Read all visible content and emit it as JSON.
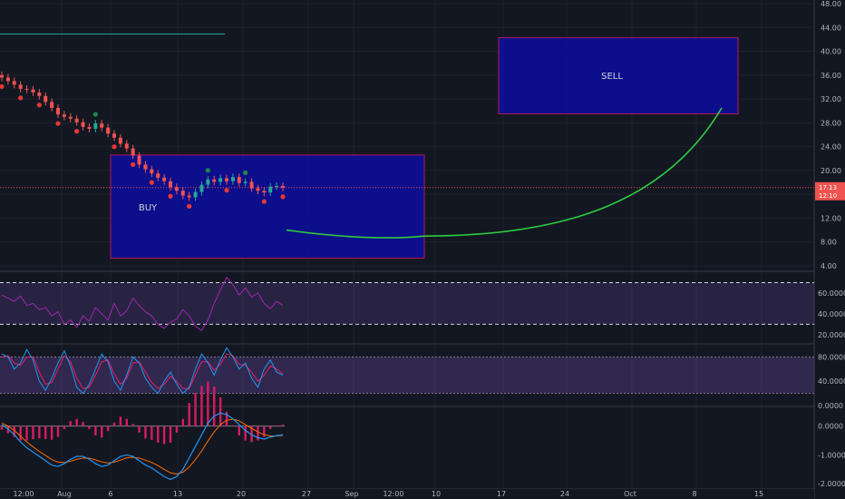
{
  "chart_data": {
    "type": "line",
    "price_axis": {
      "ticks": [
        "48.00",
        "44.00",
        "40.00",
        "36.00",
        "32.00",
        "28.00",
        "24.00",
        "20.00",
        "16.00",
        "12.00",
        "8.00",
        "4.00"
      ],
      "tick_values": [
        48,
        44,
        40,
        36,
        32,
        28,
        24,
        20,
        16,
        12,
        8,
        4
      ],
      "range": [
        4,
        48
      ]
    },
    "time_axis": {
      "labels": [
        "12:00",
        "Aug",
        "6",
        "13",
        "20",
        "27",
        "Sep",
        "12:00",
        "10",
        "17",
        "24",
        "Oct",
        "8",
        "15"
      ]
    },
    "last_price": {
      "value": 17.13,
      "label": "17.13",
      "countdown": "12:10",
      "color": "#ef5350"
    },
    "zones": [
      {
        "label": "BUY",
        "price_low": 5.3,
        "price_high": 22.6,
        "color": "#0d0d9e",
        "border": "#b0185c"
      },
      {
        "label": "SELL",
        "price_low": 29.5,
        "price_high": 42.3,
        "color": "#0d0d9e",
        "border": "#b0185c"
      }
    ],
    "projection_curve": {
      "color": "#2ecc40",
      "from_price": 10.0,
      "bottom_price": 9.0,
      "to_price": 30.5
    },
    "resistance_line": {
      "price": 42.9,
      "color": "#26a69a"
    },
    "price_series": {
      "name": "",
      "values": [
        35.6,
        35.0,
        34.4,
        33.7,
        33.6,
        33.1,
        32.5,
        31.5,
        30.5,
        29.4,
        29.0,
        28.7,
        28.1,
        27.3,
        27.0,
        27.9,
        27.2,
        26.2,
        25.5,
        24.5,
        23.7,
        22.5,
        21.0,
        20.2,
        19.5,
        18.8,
        18.2,
        17.2,
        16.6,
        15.8,
        15.5,
        16.4,
        17.6,
        18.5,
        18.1,
        18.7,
        18.2,
        18.9,
        17.9,
        18.1,
        17.0,
        16.6,
        16.3,
        17.3,
        17.4,
        17.1
      ],
      "up_color": "#26a69a",
      "down_color": "#ef5350"
    },
    "rsi": {
      "ticks": [
        "60.0000",
        "40.0000",
        "20.0000"
      ],
      "tick_values": [
        60,
        40,
        20
      ],
      "range": [
        12,
        80
      ],
      "band": [
        30,
        70
      ],
      "color": "#9c27b0",
      "values": [
        58,
        55,
        52,
        57,
        48,
        50,
        44,
        46,
        38,
        42,
        30,
        34,
        27,
        38,
        33,
        46,
        40,
        34,
        50,
        38,
        43,
        55,
        48,
        42,
        38,
        30,
        26,
        32,
        35,
        44,
        38,
        28,
        24,
        34,
        50,
        63,
        75,
        68,
        58,
        65,
        56,
        60,
        50,
        45,
        52,
        48
      ]
    },
    "stoch": {
      "ticks": [
        "80.0000",
        "40.0000",
        "0.0000"
      ],
      "tick_values": [
        80,
        40,
        0
      ],
      "range": [
        0,
        100
      ],
      "band": [
        20,
        80
      ],
      "k_color": "#2196f3",
      "d_color": "#e91e63",
      "k_values": [
        85,
        80,
        60,
        70,
        92,
        75,
        40,
        25,
        45,
        70,
        90,
        65,
        30,
        20,
        35,
        60,
        85,
        72,
        40,
        25,
        50,
        80,
        70,
        45,
        30,
        20,
        40,
        55,
        35,
        20,
        30,
        60,
        85,
        70,
        50,
        75,
        95,
        80,
        60,
        70,
        45,
        30,
        60,
        75,
        55,
        50
      ],
      "d_values": [
        80,
        82,
        70,
        66,
        80,
        80,
        55,
        35,
        38,
        60,
        82,
        72,
        45,
        28,
        30,
        50,
        72,
        75,
        52,
        35,
        45,
        70,
        72,
        55,
        38,
        28,
        35,
        48,
        40,
        28,
        28,
        50,
        72,
        72,
        58,
        68,
        85,
        82,
        68,
        66,
        55,
        40,
        50,
        65,
        60,
        52
      ]
    },
    "macd": {
      "ticks": [
        "0.0000",
        "-1.0000",
        "-2.0000"
      ],
      "tick_values": [
        0,
        -1,
        -2
      ],
      "range": [
        -2.15,
        0.65
      ],
      "macd_color": "#2196f3",
      "signal_color": "#ff6d00",
      "hist_color": "#d81b60",
      "macd_values": [
        0.05,
        -0.1,
        -0.3,
        -0.55,
        -0.75,
        -0.9,
        -1.05,
        -1.2,
        -1.35,
        -1.4,
        -1.3,
        -1.15,
        -1.05,
        -1.05,
        -1.15,
        -1.3,
        -1.4,
        -1.35,
        -1.2,
        -1.05,
        -1.0,
        -1.05,
        -1.2,
        -1.35,
        -1.45,
        -1.6,
        -1.75,
        -1.85,
        -1.75,
        -1.5,
        -1.1,
        -0.7,
        -0.3,
        0.1,
        0.35,
        0.45,
        0.4,
        0.25,
        0.05,
        -0.15,
        -0.3,
        -0.4,
        -0.45,
        -0.38,
        -0.33,
        -0.3
      ],
      "signal_values": [
        0.1,
        0.0,
        -0.15,
        -0.35,
        -0.55,
        -0.72,
        -0.88,
        -1.02,
        -1.16,
        -1.25,
        -1.26,
        -1.22,
        -1.15,
        -1.11,
        -1.11,
        -1.17,
        -1.24,
        -1.28,
        -1.25,
        -1.18,
        -1.1,
        -1.08,
        -1.11,
        -1.18,
        -1.26,
        -1.37,
        -1.5,
        -1.62,
        -1.66,
        -1.6,
        -1.42,
        -1.16,
        -0.86,
        -0.52,
        -0.2,
        0.05,
        0.2,
        0.24,
        0.18,
        0.05,
        -0.08,
        -0.2,
        -0.3,
        -0.34,
        -0.34,
        -0.32
      ]
    }
  }
}
